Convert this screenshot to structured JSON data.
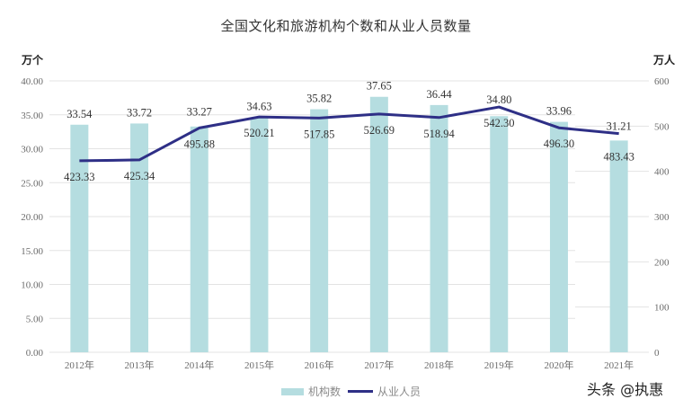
{
  "chart": {
    "title": "全国文化和旅游机构个数和从业人员数量",
    "left_unit": "万个",
    "right_unit": "万人",
    "legend": {
      "bar_label": "机构数",
      "line_label": "从业人员"
    },
    "watermark": "头条 @执惠",
    "colors": {
      "bar": "#b5dde0",
      "line": "#2e2f86",
      "grid": "#e3e3e3"
    }
  },
  "chart_data": {
    "type": "bar+line",
    "title": "全国文化和旅游机构个数和从业人员数量",
    "categories": [
      "2012年",
      "2013年",
      "2014年",
      "2015年",
      "2016年",
      "2017年",
      "2018年",
      "2019年",
      "2020年",
      "2021年"
    ],
    "series": [
      {
        "name": "机构数",
        "type": "bar",
        "axis": "left",
        "unit": "万个",
        "values": [
          33.54,
          33.72,
          33.27,
          34.63,
          35.82,
          37.65,
          36.44,
          34.8,
          33.96,
          31.21
        ]
      },
      {
        "name": "从业人员",
        "type": "line",
        "axis": "right",
        "unit": "万人",
        "values": [
          423.33,
          425.34,
          495.88,
          520.21,
          517.85,
          526.69,
          518.94,
          542.3,
          496.3,
          483.43
        ]
      }
    ],
    "left_axis": {
      "label": "万个",
      "ylim": [
        0,
        40
      ],
      "ticks": [
        "0.00",
        "5.00",
        "10.00",
        "15.00",
        "20.00",
        "25.00",
        "30.00",
        "35.00",
        "40.00"
      ]
    },
    "right_axis": {
      "label": "万人",
      "ylim": [
        0,
        600
      ],
      "ticks": [
        "0",
        "100",
        "200",
        "300",
        "400",
        "500",
        "600"
      ]
    },
    "legend_position": "bottom",
    "grid": true
  }
}
